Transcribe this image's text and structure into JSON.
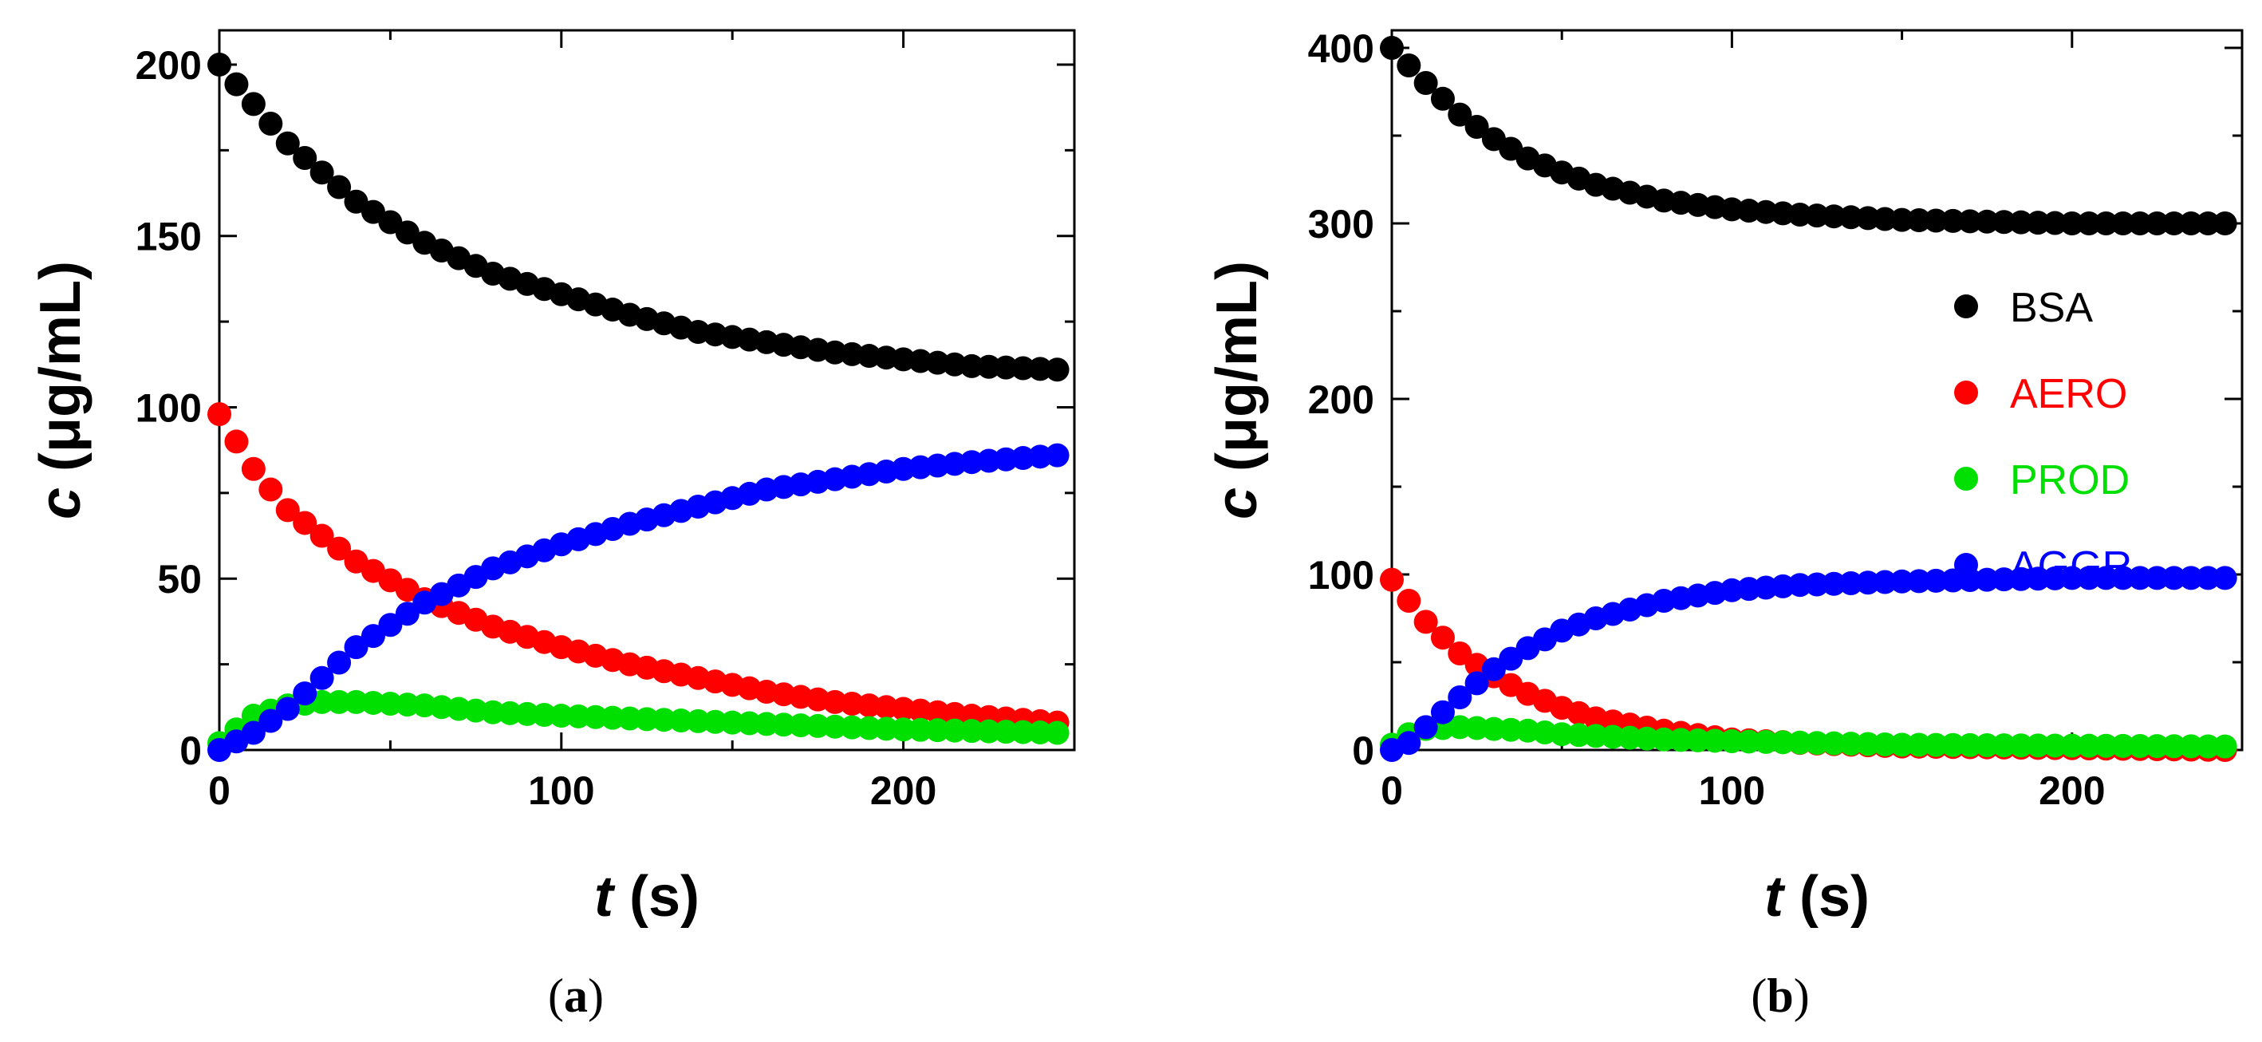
{
  "chart_data": [
    {
      "type": "scatter",
      "panel_label": "a",
      "xlabel_var": "t",
      "xlabel_unit": " (s)",
      "ylabel_var": "c",
      "ylabel_unit": " (μg/mL)",
      "xlim": [
        0,
        250
      ],
      "ylim": [
        0,
        210
      ],
      "xticks": [
        0,
        100,
        200
      ],
      "yticks": [
        0,
        50,
        100,
        150,
        200
      ],
      "legend": false,
      "series": [
        {
          "name": "BSA",
          "color": "#000000",
          "x": [
            0,
            20,
            40,
            60,
            80,
            100,
            120,
            140,
            160,
            180,
            200,
            220,
            245
          ],
          "y": [
            200,
            177,
            160,
            148,
            139,
            133,
            127,
            122,
            119,
            116,
            114,
            112,
            111
          ]
        },
        {
          "name": "AERO",
          "color": "#ff0000",
          "x": [
            0,
            10,
            20,
            40,
            60,
            80,
            100,
            120,
            140,
            160,
            180,
            200,
            220,
            245
          ],
          "y": [
            98,
            82,
            70,
            55,
            44,
            36,
            30,
            25,
            21,
            17,
            14,
            12,
            10,
            8
          ]
        },
        {
          "name": "PROD",
          "color": "#00e000",
          "x": [
            0,
            5,
            10,
            20,
            30,
            40,
            60,
            80,
            100,
            150,
            200,
            245
          ],
          "y": [
            2,
            6,
            10,
            13,
            14,
            14,
            13,
            11,
            10,
            8,
            6,
            5
          ]
        },
        {
          "name": "AGGR",
          "color": "#0000ff",
          "x": [
            0,
            10,
            20,
            40,
            60,
            80,
            100,
            120,
            140,
            160,
            180,
            200,
            220,
            245
          ],
          "y": [
            0,
            5,
            12,
            30,
            43,
            53,
            60,
            66,
            71,
            76,
            79,
            82,
            84,
            86
          ]
        }
      ]
    },
    {
      "type": "scatter",
      "panel_label": "b",
      "xlabel_var": "t",
      "xlabel_unit": " (s)",
      "ylabel_var": "c",
      "ylabel_unit": " (μg/mL)",
      "xlim": [
        0,
        250
      ],
      "ylim": [
        0,
        410
      ],
      "xticks": [
        0,
        100,
        200
      ],
      "yticks": [
        0,
        100,
        200,
        300,
        400
      ],
      "legend": true,
      "legend_position": "right",
      "series": [
        {
          "name": "BSA",
          "color": "#000000",
          "x": [
            0,
            10,
            20,
            30,
            40,
            50,
            60,
            80,
            100,
            120,
            150,
            200,
            245
          ],
          "y": [
            400,
            380,
            362,
            348,
            337,
            329,
            322,
            313,
            308,
            305,
            302,
            300,
            300
          ]
        },
        {
          "name": "AERO",
          "color": "#ff0000",
          "x": [
            0,
            10,
            20,
            30,
            40,
            50,
            60,
            80,
            100,
            120,
            150,
            200,
            245
          ],
          "y": [
            97,
            73,
            55,
            42,
            32,
            24,
            18,
            11,
            6,
            4,
            2,
            1,
            0
          ]
        },
        {
          "name": "PROD",
          "color": "#00e000",
          "x": [
            0,
            5,
            10,
            20,
            30,
            40,
            50,
            60,
            80,
            100,
            150,
            245
          ],
          "y": [
            3,
            9,
            12,
            13,
            12,
            11,
            9,
            8,
            6,
            5,
            3,
            2
          ]
        },
        {
          "name": "AGGR",
          "color": "#0000ff",
          "x": [
            0,
            5,
            10,
            20,
            30,
            40,
            50,
            60,
            80,
            100,
            120,
            150,
            200,
            245
          ],
          "y": [
            0,
            4,
            13,
            30,
            46,
            58,
            68,
            75,
            85,
            91,
            94,
            96,
            98,
            98
          ]
        }
      ]
    }
  ]
}
